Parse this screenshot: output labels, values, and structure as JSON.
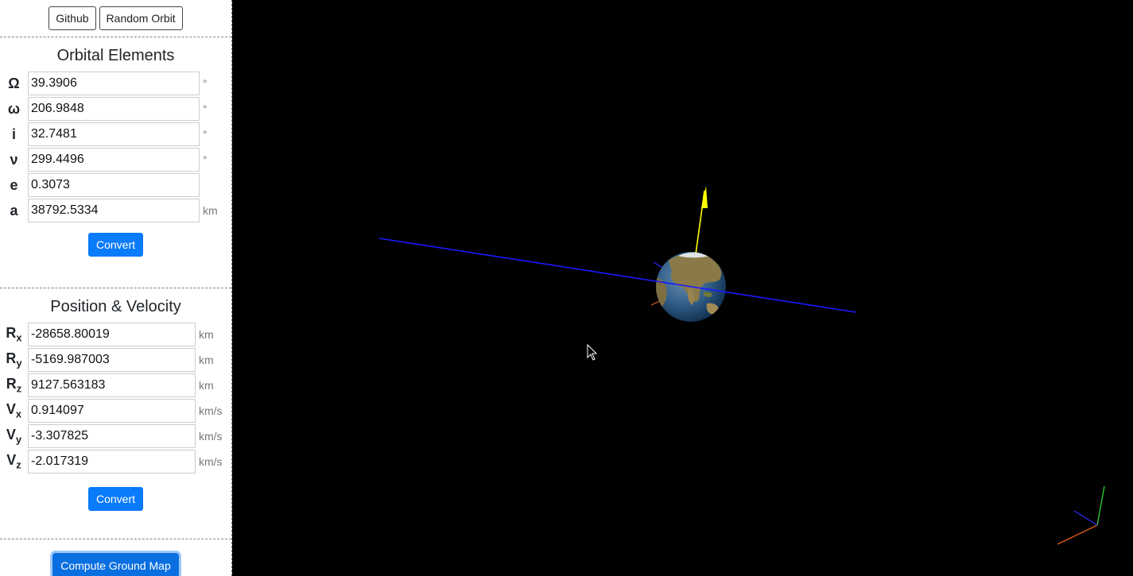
{
  "topbar": {
    "github_label": "Github",
    "random_label": "Random Orbit"
  },
  "orbital_elements": {
    "title": "Orbital Elements",
    "rows": [
      {
        "symbol": "Ω",
        "value": "39.3906",
        "unit": "°"
      },
      {
        "symbol": "ω",
        "value": "206.9848",
        "unit": "°"
      },
      {
        "symbol": "i",
        "value": "32.7481",
        "unit": "°"
      },
      {
        "symbol": "ν",
        "value": "299.4496",
        "unit": "°"
      },
      {
        "symbol": "e",
        "value": "0.3073",
        "unit": ""
      },
      {
        "symbol": "a",
        "value": "38792.5334",
        "unit": "km"
      }
    ],
    "convert_label": "Convert"
  },
  "position_velocity": {
    "title": "Position & Velocity",
    "rows": [
      {
        "symbol": "R",
        "sub": "x",
        "value": "-28658.80019",
        "unit": "km"
      },
      {
        "symbol": "R",
        "sub": "y",
        "value": "-5169.987003",
        "unit": "km"
      },
      {
        "symbol": "R",
        "sub": "z",
        "value": "9127.563183",
        "unit": "km"
      },
      {
        "symbol": "V",
        "sub": "x",
        "value": "0.914097",
        "unit": "km/s"
      },
      {
        "symbol": "V",
        "sub": "y",
        "value": "-3.307825",
        "unit": "km/s"
      },
      {
        "symbol": "V",
        "sub": "z",
        "value": "-2.017319",
        "unit": "km/s"
      }
    ],
    "convert_label": "Convert"
  },
  "ground_map_label": "Compute Ground Map",
  "scene": {
    "background": "#000000",
    "orbit_color": "#1a1aff",
    "pole_arrow_color": "#ffff00",
    "axis_x_color": "#e05a1a",
    "axis_y_color": "#2fd12f",
    "axis_z_color": "#2a2aff",
    "ocean_color": "#2f5d86",
    "land_color": "#8a7a4a",
    "cursor_icon": "mouse-pointer-icon"
  }
}
